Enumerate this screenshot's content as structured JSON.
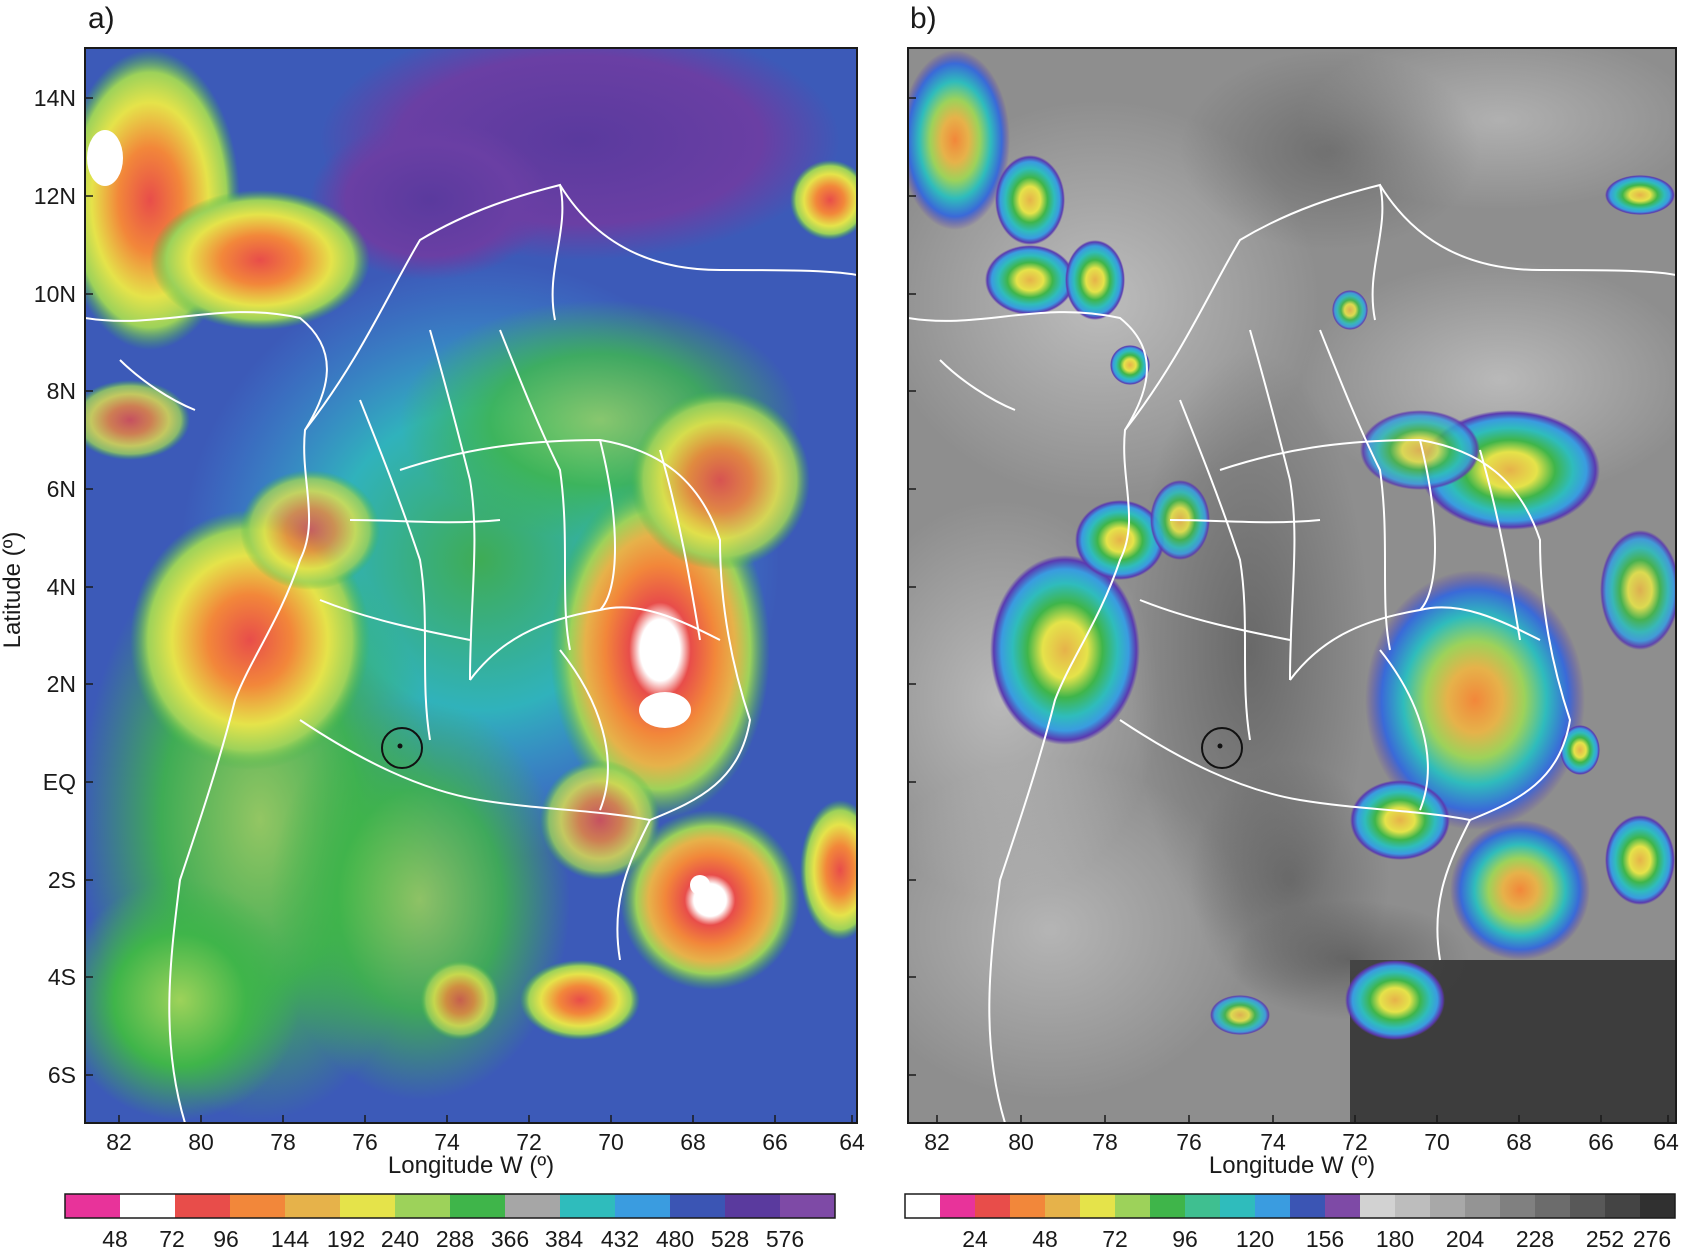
{
  "panels": [
    {
      "id": "a",
      "tag": "a)",
      "ylabel": "Latitude (º)",
      "xlabel": "Longitude W (º)",
      "y_ticks": [
        "14N",
        "12N",
        "10N",
        "8N",
        "6N",
        "4N",
        "2N",
        "EQ",
        "2S",
        "4S",
        "6S"
      ],
      "x_ticks": [
        "82",
        "80",
        "78",
        "76",
        "74",
        "72",
        "70",
        "68",
        "66",
        "64"
      ],
      "colorbar": {
        "labels": [
          "48",
          "72",
          "96",
          "144",
          "192",
          "240",
          "288",
          "366",
          "384",
          "432",
          "480",
          "528",
          "576"
        ],
        "colors": [
          "#e8339a",
          "#ffffff",
          "#e84d4a",
          "#f2873a",
          "#e6b24a",
          "#e5e34a",
          "#9dd25a",
          "#3fb54a",
          "#a6a6a6",
          "#2fbcbc",
          "#3a9ce0",
          "#3b55b4",
          "#5a3a9e",
          "#7e4aa6"
        ]
      },
      "marker": "circle"
    },
    {
      "id": "b",
      "tag": "b)",
      "xlabel": "Longitude W (º)",
      "x_ticks": [
        "82",
        "80",
        "78",
        "76",
        "74",
        "72",
        "70",
        "68",
        "66",
        "64"
      ],
      "colorbar": {
        "labels": [
          "24",
          "48",
          "72",
          "96",
          "120",
          "156",
          "180",
          "204",
          "228",
          "252",
          "276"
        ],
        "colors": [
          "#ffffff",
          "#e8339a",
          "#e84d4a",
          "#f2873a",
          "#e6b24a",
          "#e5e34a",
          "#9dd25a",
          "#3fb54a",
          "#3fbf90",
          "#2fbcbc",
          "#3a9ce0",
          "#3b55b4",
          "#7e4aa6",
          "#d2d2d2",
          "#bdbdbd",
          "#a8a8a8",
          "#949494",
          "#808080",
          "#6c6c6c",
          "#585858",
          "#444444",
          "#303030"
        ]
      },
      "marker": "circle"
    }
  ]
}
